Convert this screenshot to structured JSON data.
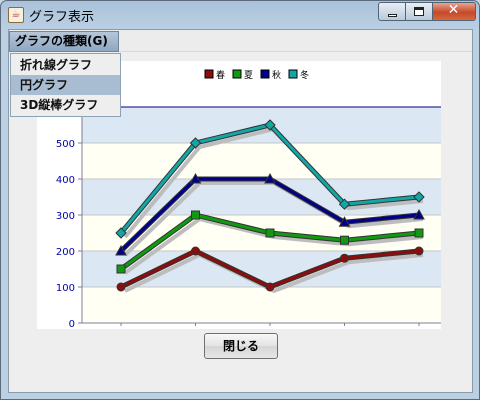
{
  "window": {
    "title": "グラフ表示",
    "app_icon_glyph": "☕",
    "minimize_icon": "minimize-icon",
    "maximize_icon": "maximize-icon",
    "close_glyph": "✕"
  },
  "menu": {
    "title": "グラフの種類(G)",
    "items": [
      "折れ線グラフ",
      "円グラフ",
      "3D縦棒グラフ"
    ],
    "selected_index": 1
  },
  "footer": {
    "close_label": "閉じる"
  },
  "chart_data": {
    "type": "line",
    "x": [
      "1",
      "2",
      "3",
      "4",
      "5"
    ],
    "series": [
      {
        "name": "春",
        "values": [
          100,
          200,
          100,
          180,
          200
        ],
        "color": "#8b0d0d",
        "marker": "circle"
      },
      {
        "name": "夏",
        "values": [
          150,
          300,
          250,
          230,
          250
        ],
        "color": "#119911",
        "marker": "square"
      },
      {
        "name": "秋",
        "values": [
          200,
          400,
          400,
          280,
          300
        ],
        "color": "#000088",
        "marker": "triangle"
      },
      {
        "name": "冬",
        "values": [
          250,
          500,
          550,
          330,
          350
        ],
        "color": "#13a6a6",
        "marker": "diamond"
      }
    ],
    "yticks": [
      0,
      100,
      200,
      300,
      400,
      500
    ],
    "ylim": [
      0,
      600
    ],
    "legend": "top-center",
    "grid": true,
    "band_colors": [
      "#fffff4",
      "#dbe8f3"
    ]
  }
}
